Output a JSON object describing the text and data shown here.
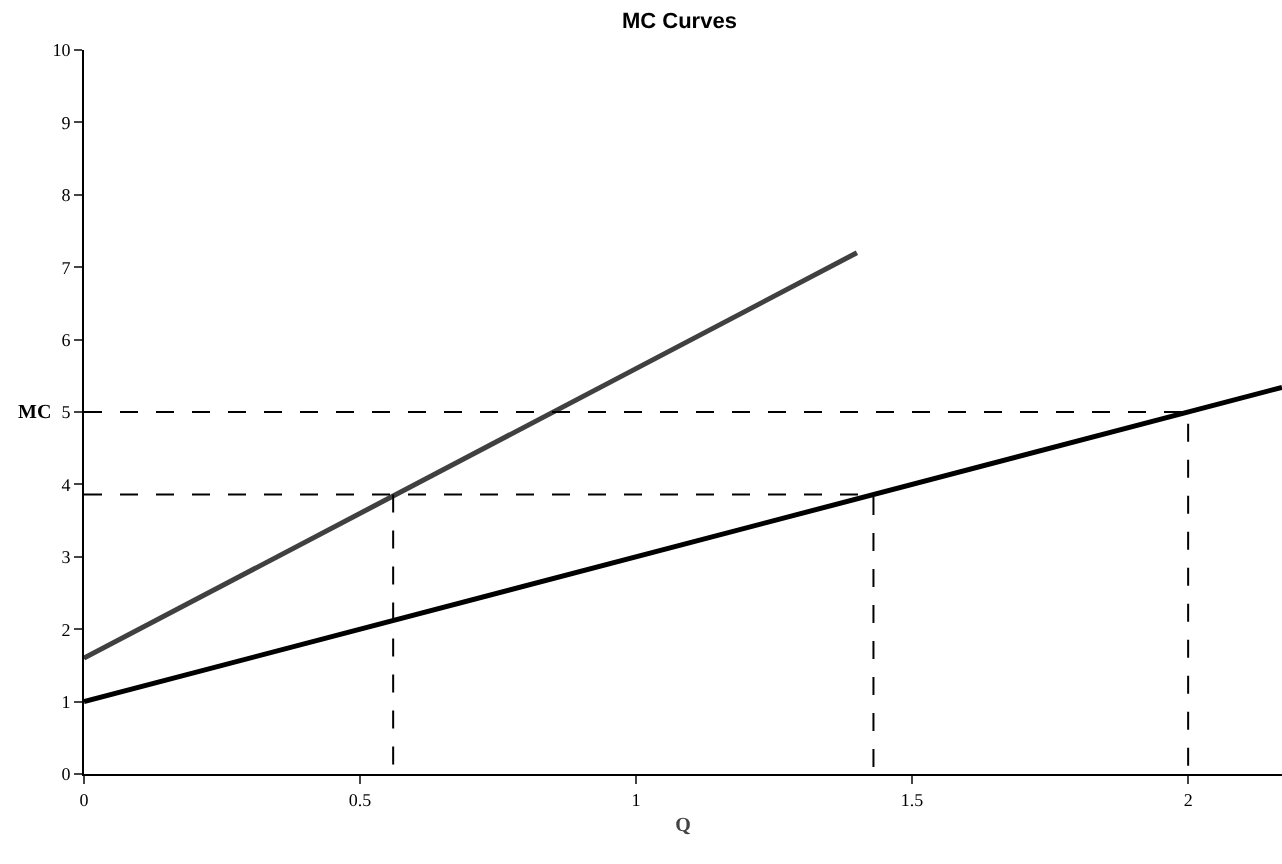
{
  "chart_data": {
    "type": "line",
    "title": "MC Curves",
    "xlabel": "Q",
    "ylabel": "MC",
    "xlim": [
      0,
      2.17
    ],
    "xticks": [
      0,
      0.5,
      1,
      1.5,
      2
    ],
    "ylim": [
      0,
      10
    ],
    "yticks": [
      0,
      1,
      2,
      3,
      4,
      5,
      6,
      7,
      8,
      9,
      10
    ],
    "grid": false,
    "marker": "none",
    "series": [
      {
        "color": "#404040",
        "x": [
          0,
          1.4
        ],
        "values": [
          1.6,
          7.2
        ],
        "line_style": "solid"
      },
      {
        "color": "#000000",
        "x": [
          0,
          2.17
        ],
        "values": [
          1,
          5.34
        ],
        "line_style": "solid"
      },
      {
        "color": "#000000",
        "x": [
          0,
          2,
          2
        ],
        "values": [
          5,
          5,
          0
        ],
        "line_style": "dashed"
      },
      {
        "color": "#000000",
        "x": [
          0,
          1.43,
          1.43
        ],
        "values": [
          3.86,
          3.86,
          0
        ],
        "line_style": "dashed"
      },
      {
        "color": "#000000",
        "x": [
          0.56,
          0.56
        ],
        "values": [
          3.86,
          0
        ],
        "line_style": "dashed"
      }
    ]
  }
}
